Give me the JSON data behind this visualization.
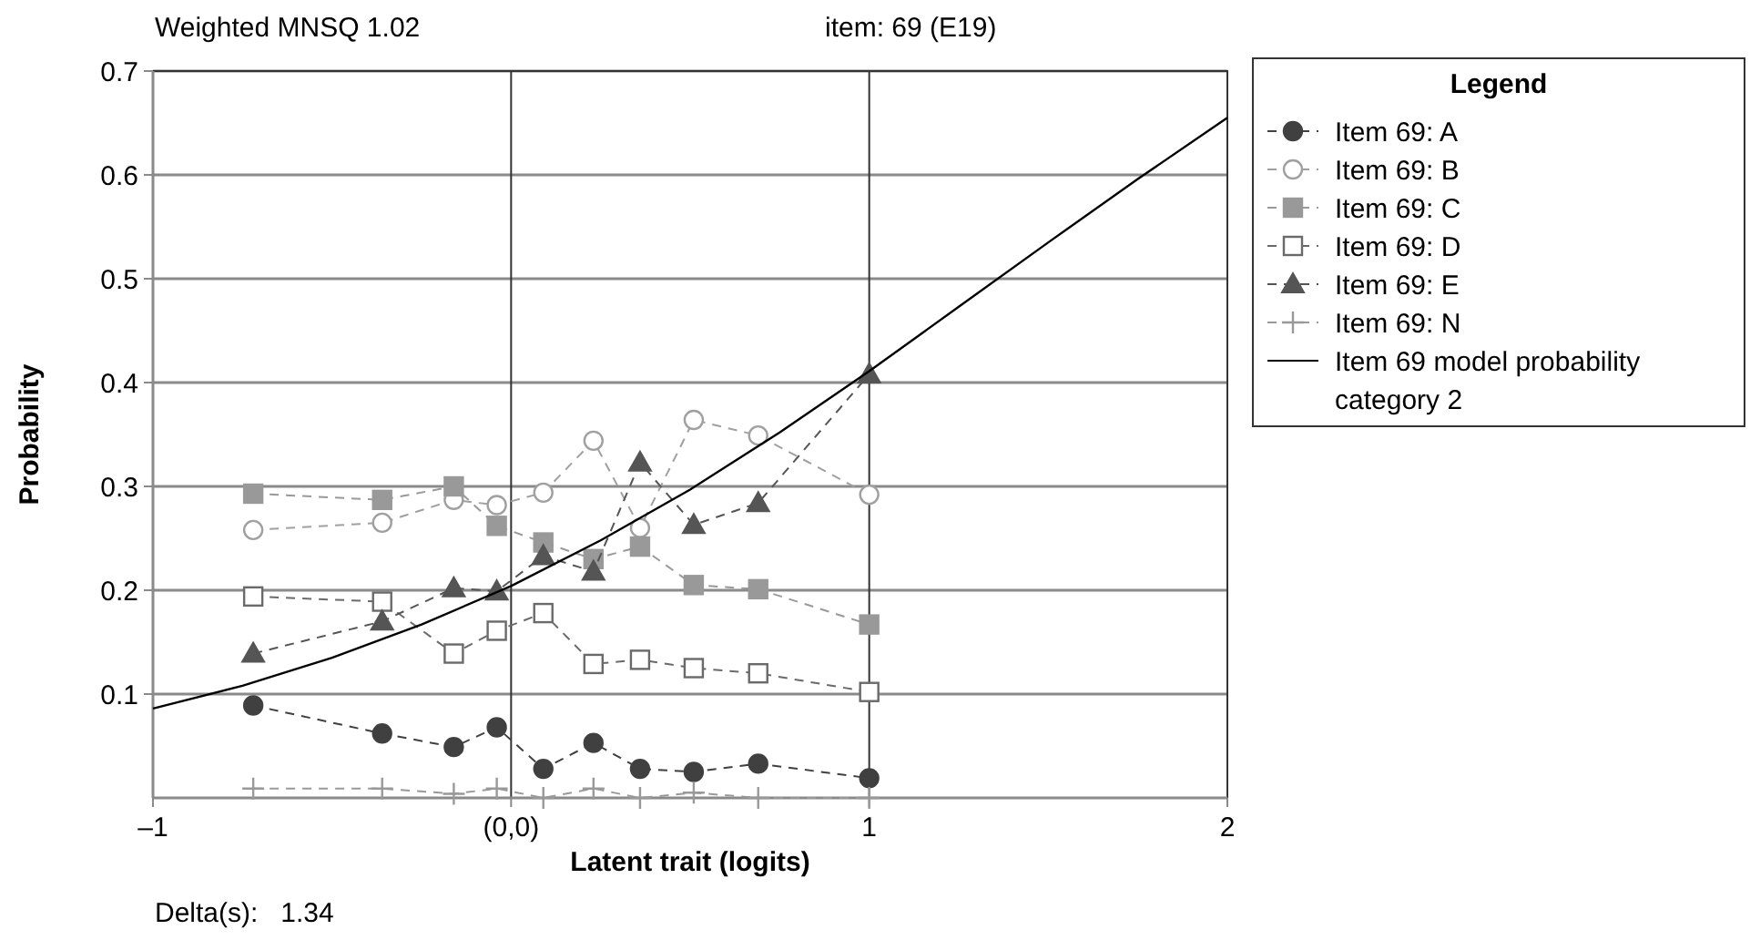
{
  "chart_data": {
    "type": "line",
    "title": "item: 69 (E19)",
    "xlabel": "Latent trait (logits)",
    "ylabel": "Probability",
    "legend_title": "Legend",
    "annotations": [
      "Weighted MNSQ 1.02",
      "Delta(s):   1.34"
    ],
    "xlim": [
      -1,
      2
    ],
    "xticks": [
      {
        "value": -1,
        "label": "–1"
      },
      {
        "value": 0,
        "label": "(0,0)"
      },
      1,
      2
    ],
    "ylim": [
      0,
      0.7
    ],
    "yticks": [
      {
        "value": 0,
        "label": null
      },
      0.1,
      0.2,
      0.3,
      0.4,
      0.5,
      0.6,
      0.7
    ],
    "grid": true,
    "legend": "right",
    "x": [
      -0.72,
      -0.36,
      -0.16,
      -0.04,
      0.09,
      0.23,
      0.36,
      0.51,
      0.69,
      1.0
    ],
    "series": [
      {
        "name": "Item 69: A",
        "color": "#404040",
        "marker": "circle",
        "line_style": "dashed",
        "values": [
          0.089,
          0.062,
          0.049,
          0.068,
          0.028,
          0.053,
          0.028,
          0.025,
          0.033,
          0.019
        ]
      },
      {
        "name": "Item 69: B",
        "color": "#a0a0a0",
        "marker": "circle",
        "line_style": "dashed",
        "values": [
          0.258,
          0.265,
          0.287,
          0.282,
          0.294,
          0.344,
          0.26,
          0.364,
          0.349,
          0.292
        ]
      },
      {
        "name": "Item 69: C",
        "color": "#999999",
        "marker": "square",
        "line_style": "dashed",
        "values": [
          0.293,
          0.287,
          0.3,
          0.262,
          0.246,
          0.23,
          0.242,
          0.205,
          0.201,
          0.167
        ]
      },
      {
        "name": "Item 69: D",
        "color": "#6a6a6a",
        "marker": "square",
        "line_style": "dashed",
        "values": [
          0.194,
          0.189,
          0.139,
          0.161,
          0.178,
          0.129,
          0.133,
          0.125,
          0.12,
          0.102
        ]
      },
      {
        "name": "Item 69: E",
        "color": "#555555",
        "marker": "triangle",
        "line_style": "dashed",
        "values": [
          0.139,
          0.17,
          0.202,
          0.199,
          0.233,
          0.218,
          0.323,
          0.263,
          0.284,
          0.408
        ]
      },
      {
        "name": "Item 69: N",
        "color": "#999999",
        "marker": "cross",
        "line_style": "dashed",
        "values": [
          0.009,
          0.009,
          0.004,
          0.009,
          0.0,
          0.009,
          0.0,
          0.005,
          0.0,
          0.0
        ]
      },
      {
        "name": "Item 69 model probability category 2",
        "color": "#000000",
        "marker": "none",
        "line_style": "solid",
        "x": [
          -1,
          -0.75,
          -0.5,
          -0.25,
          0,
          0.25,
          0.5,
          0.75,
          1,
          1.25,
          1.5,
          1.75,
          2
        ],
        "values": [
          0.086,
          0.108,
          0.135,
          0.167,
          0.204,
          0.248,
          0.297,
          0.352,
          0.411,
          0.473,
          0.535,
          0.596,
          0.655
        ]
      }
    ]
  }
}
